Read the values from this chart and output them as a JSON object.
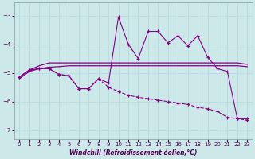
{
  "xlabel": "Windchill (Refroidissement éolien,°C)",
  "background_color": "#cce8e8",
  "grid_color": "#aacccc",
  "line_color": "#880088",
  "xlim": [
    -0.5,
    23.5
  ],
  "ylim": [
    -7.3,
    -2.55
  ],
  "yticks": [
    -7,
    -6,
    -5,
    -4,
    -3
  ],
  "xticks": [
    0,
    1,
    2,
    3,
    4,
    5,
    6,
    7,
    8,
    9,
    10,
    11,
    12,
    13,
    14,
    15,
    16,
    17,
    18,
    19,
    20,
    21,
    22,
    23
  ],
  "curve_flat1_x": [
    0,
    1,
    2,
    3,
    4,
    5,
    6,
    7,
    8,
    9,
    10,
    11,
    12,
    13,
    14,
    15,
    16,
    17,
    18,
    19,
    20,
    21,
    22,
    23
  ],
  "curve_flat1_y": [
    -5.15,
    -4.9,
    -4.75,
    -4.65,
    -4.65,
    -4.65,
    -4.65,
    -4.65,
    -4.65,
    -4.65,
    -4.65,
    -4.65,
    -4.65,
    -4.65,
    -4.65,
    -4.65,
    -4.65,
    -4.65,
    -4.65,
    -4.65,
    -4.65,
    -4.65,
    -4.65,
    -4.7
  ],
  "curve_flat2_x": [
    0,
    1,
    2,
    3,
    4,
    5,
    6,
    7,
    8,
    9,
    10,
    11,
    12,
    13,
    14,
    15,
    16,
    17,
    18,
    19,
    20,
    21,
    22,
    23
  ],
  "curve_flat2_y": [
    -5.2,
    -4.95,
    -4.85,
    -4.8,
    -4.78,
    -4.75,
    -4.75,
    -4.75,
    -4.75,
    -4.75,
    -4.75,
    -4.75,
    -4.75,
    -4.75,
    -4.75,
    -4.75,
    -4.75,
    -4.75,
    -4.75,
    -4.75,
    -4.75,
    -4.75,
    -4.75,
    -4.78
  ],
  "curve_jagged_x": [
    0,
    1,
    2,
    3,
    4,
    5,
    6,
    7,
    8,
    9,
    10,
    11,
    12,
    13,
    14,
    15,
    16,
    17,
    18,
    19,
    20,
    21,
    22,
    23
  ],
  "curve_jagged_y": [
    -5.15,
    -4.9,
    -4.85,
    -4.85,
    -5.05,
    -5.1,
    -5.55,
    -5.55,
    -5.2,
    -5.35,
    -3.05,
    -4.0,
    -4.5,
    -3.55,
    -3.55,
    -3.95,
    -3.7,
    -4.05,
    -3.7,
    -4.45,
    -4.85,
    -4.95,
    -6.6,
    -6.6
  ],
  "curve_desc_x": [
    0,
    1,
    2,
    3,
    4,
    5,
    6,
    7,
    8,
    9,
    10,
    11,
    12,
    13,
    14,
    15,
    16,
    17,
    18,
    19,
    20,
    21,
    22,
    23
  ],
  "curve_desc_y": [
    -5.15,
    -4.9,
    -4.85,
    -4.85,
    -5.05,
    -5.1,
    -5.55,
    -5.55,
    -5.2,
    -5.5,
    -5.65,
    -5.78,
    -5.85,
    -5.9,
    -5.95,
    -6.0,
    -6.05,
    -6.1,
    -6.2,
    -6.25,
    -6.35,
    -6.55,
    -6.6,
    -6.65
  ]
}
